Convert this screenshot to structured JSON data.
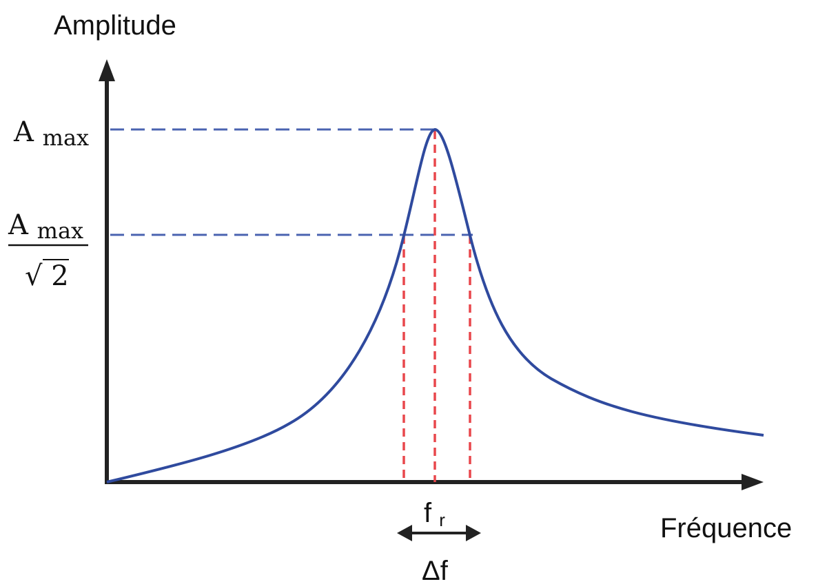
{
  "diagram": {
    "y_axis_title": "Amplitude",
    "x_axis_title": "Fréquence",
    "amax_label": {
      "main": "A",
      "sub": "max"
    },
    "amax_sqrt2_label": {
      "num_main": "A",
      "num_sub": "max",
      "den_radical": "√",
      "den_value": "2"
    },
    "fr_label": {
      "main": "f",
      "sub": "r"
    },
    "bandwidth_label": "Δf",
    "colors": {
      "axis": "#222222",
      "curve": "#2f4a9e",
      "guide_blue": "#4a63b0",
      "guide_red": "#e8474c"
    }
  }
}
